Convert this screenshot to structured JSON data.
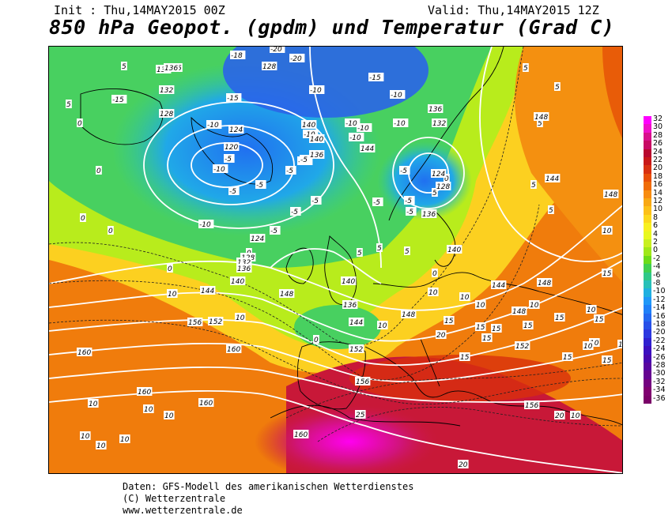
{
  "header": {
    "init": "Init : Thu,14MAY2015 00Z",
    "valid": "Valid: Thu,14MAY2015 12Z",
    "title": "850 hPa Geopot. (gpdm) und Temperatur (Grad C)"
  },
  "colorbar": {
    "levels": [
      "32",
      "30",
      "28",
      "26",
      "24",
      "22",
      "20",
      "18",
      "16",
      "14",
      "12",
      "10",
      "8",
      "6",
      "4",
      "2",
      "0",
      "-2",
      "-4",
      "-6",
      "-8",
      "-10",
      "-12",
      "-14",
      "-16",
      "-18",
      "-20",
      "-22",
      "-24",
      "-26",
      "-28",
      "-30",
      "-32",
      "-34",
      "-36"
    ],
    "colors": [
      "#ff00ff",
      "#f010c8",
      "#d8108c",
      "#c80a64",
      "#b8082e",
      "#c81818",
      "#d83010",
      "#e84e08",
      "#f06c08",
      "#f88c10",
      "#f8a814",
      "#fcc018",
      "#fcd81c",
      "#f8f020",
      "#e8f820",
      "#c8f020",
      "#a0e818",
      "#6cdc18",
      "#40d050",
      "#30c888",
      "#28c0b8",
      "#20b0e0",
      "#2098f8",
      "#2080f8",
      "#2468f0",
      "#2850e8",
      "#2c38e0",
      "#3020d0",
      "#3c10c0",
      "#4808b0",
      "#5806a0",
      "#660490",
      "#740280",
      "#800070",
      "#7a0068"
    ]
  },
  "map": {
    "temperature_labels": [
      {
        "text": "-20"
      },
      {
        "text": "-20"
      },
      {
        "text": "-18"
      },
      {
        "text": "-15"
      },
      {
        "text": "-15"
      },
      {
        "text": "-15"
      },
      {
        "text": "-10"
      },
      {
        "text": "-10"
      },
      {
        "text": "-10"
      },
      {
        "text": "-10"
      },
      {
        "text": "-10"
      },
      {
        "text": "-10"
      },
      {
        "text": "-10"
      },
      {
        "text": "-10"
      },
      {
        "text": "-10"
      },
      {
        "text": "-10"
      },
      {
        "text": "-10"
      },
      {
        "text": "-5"
      },
      {
        "text": "-5"
      },
      {
        "text": "-5"
      },
      {
        "text": "-5"
      },
      {
        "text": "-5"
      },
      {
        "text": "-5"
      },
      {
        "text": "-5"
      },
      {
        "text": "-5"
      },
      {
        "text": "-5"
      },
      {
        "text": "-5"
      },
      {
        "text": "-5"
      },
      {
        "text": "-5"
      },
      {
        "text": "0"
      },
      {
        "text": "0"
      },
      {
        "text": "0"
      },
      {
        "text": "0"
      },
      {
        "text": "0"
      },
      {
        "text": "0"
      },
      {
        "text": "0"
      },
      {
        "text": "0"
      },
      {
        "text": "0"
      },
      {
        "text": "5"
      },
      {
        "text": "5"
      },
      {
        "text": "5"
      },
      {
        "text": "5"
      },
      {
        "text": "5"
      },
      {
        "text": "5"
      },
      {
        "text": "5"
      },
      {
        "text": "5"
      },
      {
        "text": "5"
      },
      {
        "text": "5"
      },
      {
        "text": "5"
      },
      {
        "text": "5"
      },
      {
        "text": "10"
      },
      {
        "text": "10"
      },
      {
        "text": "10"
      },
      {
        "text": "10"
      },
      {
        "text": "10"
      },
      {
        "text": "10"
      },
      {
        "text": "10"
      },
      {
        "text": "10"
      },
      {
        "text": "10"
      },
      {
        "text": "10"
      },
      {
        "text": "10"
      },
      {
        "text": "10"
      },
      {
        "text": "10"
      },
      {
        "text": "10"
      },
      {
        "text": "10"
      },
      {
        "text": "10"
      },
      {
        "text": "10"
      },
      {
        "text": "10"
      },
      {
        "text": "15"
      },
      {
        "text": "15"
      },
      {
        "text": "15"
      },
      {
        "text": "15"
      },
      {
        "text": "15"
      },
      {
        "text": "15"
      },
      {
        "text": "15"
      },
      {
        "text": "15"
      },
      {
        "text": "15"
      },
      {
        "text": "15"
      },
      {
        "text": "15"
      },
      {
        "text": "15"
      },
      {
        "text": "20"
      },
      {
        "text": "20"
      },
      {
        "text": "20"
      },
      {
        "text": "25"
      }
    ],
    "geopotential_labels": [
      {
        "text": "132"
      },
      {
        "text": "136"
      },
      {
        "text": "132"
      },
      {
        "text": "128"
      },
      {
        "text": "128"
      },
      {
        "text": "124"
      },
      {
        "text": "120"
      },
      {
        "text": "136"
      },
      {
        "text": "140"
      },
      {
        "text": "140"
      },
      {
        "text": "144"
      },
      {
        "text": "136"
      },
      {
        "text": "132"
      },
      {
        "text": "124"
      },
      {
        "text": "128"
      },
      {
        "text": "136"
      },
      {
        "text": "148"
      },
      {
        "text": "144"
      },
      {
        "text": "148"
      },
      {
        "text": "148"
      },
      {
        "text": "124"
      },
      {
        "text": "128"
      },
      {
        "text": "132"
      },
      {
        "text": "136"
      },
      {
        "text": "140"
      },
      {
        "text": "140"
      },
      {
        "text": "144"
      },
      {
        "text": "140"
      },
      {
        "text": "136"
      },
      {
        "text": "144"
      },
      {
        "text": "148"
      },
      {
        "text": "144"
      },
      {
        "text": "152"
      },
      {
        "text": "156"
      },
      {
        "text": "148"
      },
      {
        "text": "152"
      },
      {
        "text": "148"
      },
      {
        "text": "160"
      },
      {
        "text": "160"
      },
      {
        "text": "160"
      },
      {
        "text": "160"
      },
      {
        "text": "152"
      },
      {
        "text": "156"
      },
      {
        "text": "156"
      },
      {
        "text": "160"
      }
    ]
  },
  "footer": {
    "line1": "Daten: GFS-Modell des amerikanischen Wetterdienstes",
    "line2": "(C) Wetterzentrale",
    "line3": "www.wetterzentrale.de"
  }
}
